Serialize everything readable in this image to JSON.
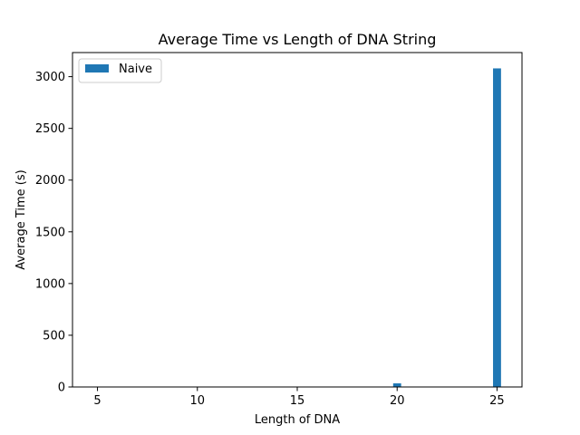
{
  "chart_data": {
    "type": "bar",
    "title": "Average Time vs Length of DNA String",
    "xlabel": "Length of DNA",
    "ylabel": "Average Time (s)",
    "xlim": [
      3.75,
      26.25
    ],
    "ylim": [
      0,
      3233
    ],
    "xticks": [
      5,
      10,
      15,
      20,
      25
    ],
    "yticks": [
      0,
      500,
      1000,
      1500,
      2000,
      2500,
      3000
    ],
    "bar_width": 0.4,
    "legend_position": "upper-left",
    "series": [
      {
        "name": "Naive",
        "color": "#1f77b4",
        "x": [
          5,
          10,
          15,
          20,
          25
        ],
        "values": [
          0.0002,
          0.01,
          0.8,
          35,
          3080
        ]
      }
    ]
  }
}
